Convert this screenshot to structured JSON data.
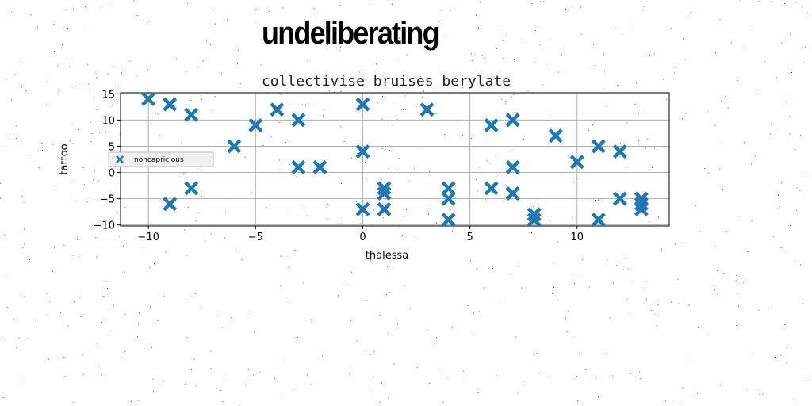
{
  "header": {
    "title": "undeliberating"
  },
  "colors": {
    "marker": "#1f77b4",
    "grid": "#b0b0b0",
    "axes": "#000000"
  },
  "chart_data": {
    "type": "scatter",
    "title": "collectivise bruises berylate",
    "xlabel": "thalessa",
    "ylabel": "tattoo",
    "xlim": [
      -11.3,
      14.3
    ],
    "ylim": [
      -10.2,
      15.2
    ],
    "xticks": [
      -10,
      -5,
      0,
      5,
      10
    ],
    "yticks": [
      -10,
      -5,
      0,
      5,
      10,
      15
    ],
    "xtick_labels": [
      "−10",
      "−5",
      "0",
      "5",
      "10"
    ],
    "ytick_labels": [
      "−10",
      "−5",
      "0",
      "5",
      "10",
      "15"
    ],
    "grid": true,
    "legend_position": "center-left",
    "marker": "X",
    "series": [
      {
        "name": "noncapricious",
        "points": [
          [
            -10,
            14
          ],
          [
            -9,
            13
          ],
          [
            -9,
            -6
          ],
          [
            -8,
            11
          ],
          [
            -8,
            -3
          ],
          [
            -6,
            5
          ],
          [
            -5,
            9
          ],
          [
            -4,
            12
          ],
          [
            -3,
            10
          ],
          [
            -3,
            1
          ],
          [
            -2,
            1
          ],
          [
            0,
            13
          ],
          [
            0,
            4
          ],
          [
            0,
            -7
          ],
          [
            1,
            -3
          ],
          [
            1,
            -4
          ],
          [
            1,
            -7
          ],
          [
            3,
            12
          ],
          [
            4,
            -3
          ],
          [
            4,
            -5
          ],
          [
            4,
            -9
          ],
          [
            6,
            9
          ],
          [
            6,
            -3
          ],
          [
            7,
            10
          ],
          [
            7,
            1
          ],
          [
            7,
            -4
          ],
          [
            8,
            -8
          ],
          [
            8,
            -9
          ],
          [
            9,
            7
          ],
          [
            10,
            2
          ],
          [
            11,
            5
          ],
          [
            11,
            -9
          ],
          [
            12,
            4
          ],
          [
            12,
            -5
          ],
          [
            13,
            -5
          ],
          [
            13,
            -6
          ],
          [
            13,
            -7
          ]
        ]
      }
    ]
  }
}
